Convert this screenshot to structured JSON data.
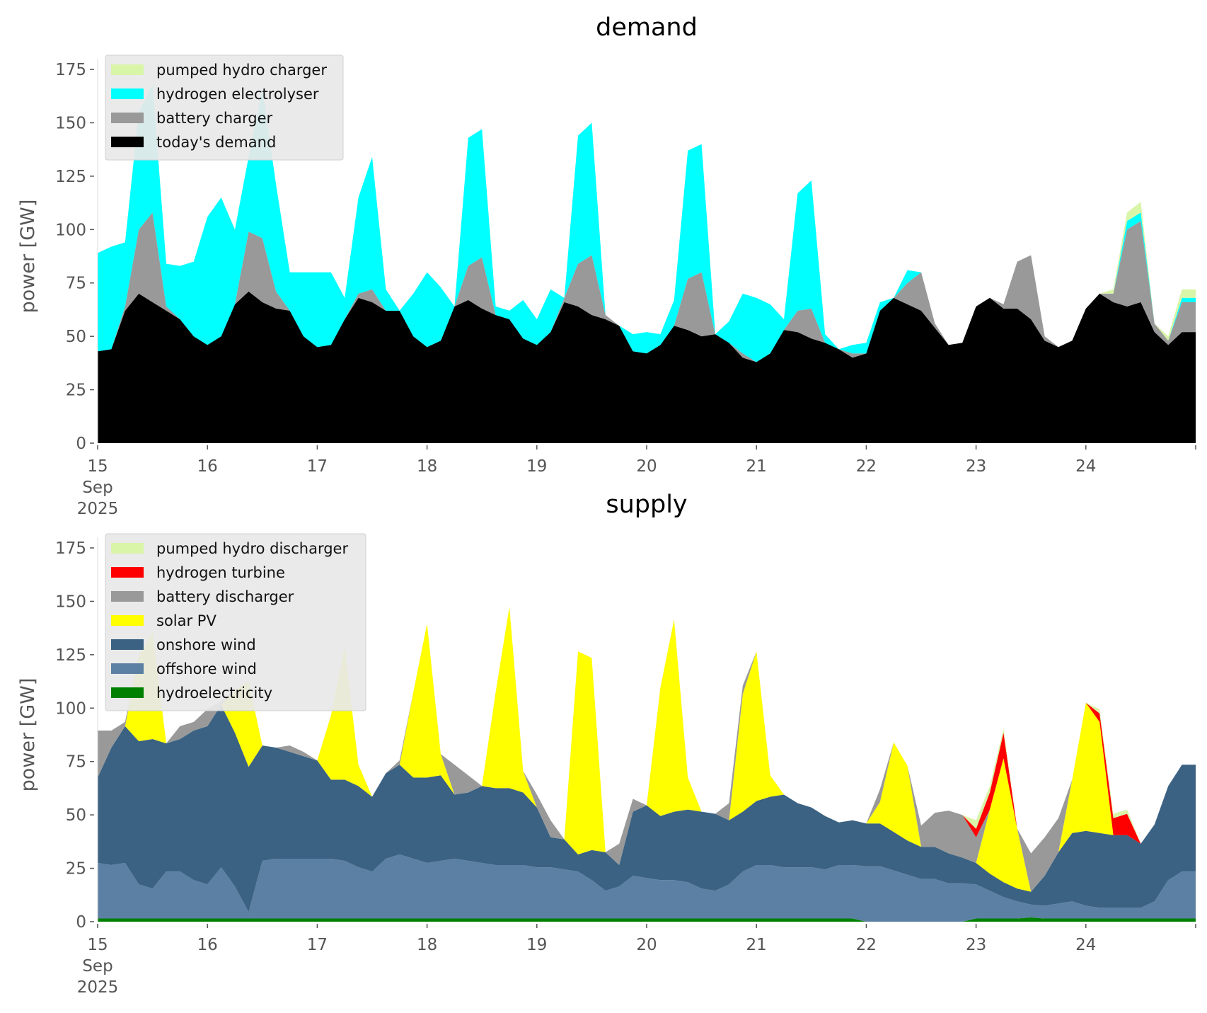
{
  "chart_data": [
    {
      "type": "area",
      "stacked": true,
      "title": "demand",
      "ylabel": "power [GW]",
      "xlabel": "",
      "ylim": [
        0,
        180
      ],
      "yticks": [
        0,
        25,
        50,
        75,
        100,
        125,
        150,
        175
      ],
      "xlim": [
        0,
        10
      ],
      "xticks": [
        0,
        1,
        2,
        3,
        4,
        5,
        6,
        7,
        8,
        9,
        10
      ],
      "xtick_labels": [
        "15\nSep\n2025",
        "16",
        "17",
        "18",
        "19",
        "20",
        "21",
        "22",
        "23",
        "24",
        ""
      ],
      "legend_position": "top-left",
      "x_unit": "days since 15 Sep 2025 (3-hourly samples)",
      "series": [
        {
          "name": "today's demand",
          "color": "#000000",
          "values": [
            43,
            44,
            62,
            70,
            66,
            62,
            58,
            50,
            46,
            50,
            65,
            71,
            66,
            63,
            62,
            50,
            45,
            46,
            58,
            68,
            66,
            62,
            62,
            50,
            45,
            48,
            64,
            67,
            63,
            60,
            58,
            49,
            46,
            52,
            66,
            64,
            60,
            58,
            55,
            43,
            42,
            46,
            55,
            53,
            50,
            51,
            47,
            40,
            38,
            42,
            53,
            52,
            49,
            47,
            44,
            40,
            42,
            62,
            68,
            65,
            62,
            54,
            46,
            47,
            64,
            68,
            63,
            63,
            58,
            48,
            45,
            48,
            63,
            70,
            66,
            64,
            66,
            52,
            46,
            52
          ]
        },
        {
          "name": "battery charger",
          "color": "#999999",
          "values": [
            0,
            0,
            2,
            30,
            42,
            2,
            0,
            0,
            0,
            0,
            0,
            28,
            30,
            8,
            0,
            0,
            0,
            0,
            0,
            2,
            6,
            0,
            0,
            0,
            0,
            0,
            0,
            16,
            24,
            0,
            0,
            0,
            0,
            0,
            2,
            20,
            28,
            2,
            0,
            0,
            0,
            0,
            0,
            24,
            30,
            0,
            0,
            2,
            0,
            0,
            0,
            10,
            14,
            0,
            0,
            2,
            0,
            0,
            0,
            10,
            18,
            2,
            0,
            0,
            0,
            0,
            2,
            22,
            30,
            2,
            0,
            0,
            0,
            0,
            4,
            36,
            38,
            4,
            2,
            14
          ]
        },
        {
          "name": "hydrogen electrolyser",
          "color": "#00ffff",
          "values": [
            46,
            48,
            30,
            55,
            60,
            20,
            25,
            35,
            60,
            65,
            35,
            35,
            70,
            50,
            18,
            30,
            35,
            34,
            10,
            45,
            62,
            10,
            0,
            20,
            35,
            25,
            0,
            60,
            60,
            4,
            4,
            18,
            12,
            20,
            0,
            60,
            62,
            0,
            0,
            8,
            10,
            5,
            12,
            60,
            60,
            0,
            10,
            28,
            30,
            23,
            5,
            55,
            60,
            4,
            0,
            4,
            5,
            4,
            0,
            6,
            0,
            0,
            0,
            0,
            0,
            0,
            0,
            0,
            0,
            0,
            0,
            0,
            0,
            0,
            0,
            4,
            4,
            0,
            0,
            2
          ]
        },
        {
          "name": "pumped hydro charger",
          "color": "#d9f5a8",
          "values": [
            0,
            0,
            0,
            0,
            0,
            0,
            0,
            0,
            0,
            0,
            0,
            0,
            0,
            0,
            0,
            0,
            0,
            0,
            0,
            0,
            0,
            0,
            0,
            0,
            0,
            0,
            0,
            0,
            0,
            0,
            0,
            0,
            0,
            0,
            0,
            0,
            0,
            0,
            0,
            0,
            0,
            0,
            0,
            0,
            0,
            0,
            0,
            0,
            0,
            0,
            0,
            0,
            0,
            0,
            0,
            0,
            0,
            0,
            0,
            0,
            0,
            0,
            0,
            0,
            0,
            0,
            0,
            0,
            0,
            0,
            0,
            0,
            0,
            0,
            2,
            4,
            5,
            0,
            2,
            4
          ]
        }
      ],
      "legend": [
        "pumped hydro charger",
        "hydrogen electrolyser",
        "battery charger",
        "today's demand"
      ]
    },
    {
      "type": "area",
      "stacked": true,
      "title": "supply",
      "ylabel": "power [GW]",
      "xlabel": "",
      "ylim": [
        0,
        180
      ],
      "yticks": [
        0,
        25,
        50,
        75,
        100,
        125,
        150,
        175
      ],
      "xlim": [
        0,
        10
      ],
      "xticks": [
        0,
        1,
        2,
        3,
        4,
        5,
        6,
        7,
        8,
        9,
        10
      ],
      "xtick_labels": [
        "15\nSep\n2025",
        "16",
        "17",
        "18",
        "19",
        "20",
        "21",
        "22",
        "23",
        "24",
        ""
      ],
      "legend_position": "top-left",
      "x_unit": "days since 15 Sep 2025 (3-hourly samples)",
      "series": [
        {
          "name": "hydroelectricity",
          "color": "#008000",
          "values": [
            1.5,
            1.5,
            1.5,
            1.5,
            1.5,
            1.5,
            1.5,
            1.5,
            1.5,
            1.5,
            1.5,
            1.5,
            1.5,
            1.5,
            1.5,
            1.5,
            1.5,
            1.5,
            1.5,
            1.5,
            1.5,
            1.5,
            1.5,
            1.5,
            1.5,
            1.5,
            1.5,
            1.5,
            1.5,
            1.5,
            1.5,
            1.5,
            1.5,
            1.5,
            1.5,
            1.5,
            1.5,
            1.5,
            1.5,
            1.5,
            1.5,
            1.5,
            1.5,
            1.5,
            1.5,
            1.5,
            1.5,
            1.5,
            1.5,
            1.5,
            1.5,
            1.5,
            1.5,
            1.5,
            1.5,
            1.5,
            0,
            0,
            0,
            0,
            0,
            0,
            0,
            0,
            1.5,
            1.5,
            1.5,
            1.5,
            2,
            1.5,
            1.5,
            1.5,
            1.5,
            1.5,
            1.5,
            1.5,
            1.5,
            1.5,
            1.5,
            1.5
          ]
        },
        {
          "name": "offshore wind",
          "color": "#5c80a3",
          "values": [
            26,
            25,
            26,
            16,
            14,
            22,
            22,
            18,
            16,
            24,
            15,
            3,
            27,
            28,
            28,
            28,
            28,
            28,
            27,
            24,
            22,
            28,
            30,
            28,
            26,
            27,
            28,
            27,
            26,
            25,
            25,
            25,
            24,
            24,
            23,
            22,
            18,
            13,
            15,
            20,
            19,
            18,
            18,
            17,
            14,
            13,
            16,
            22,
            25,
            25,
            24,
            24,
            24,
            23,
            25,
            25,
            26,
            26,
            24,
            22,
            20,
            20,
            18,
            18,
            16,
            13,
            10,
            8,
            6,
            6,
            7,
            8,
            6,
            5,
            5,
            5,
            5,
            8,
            18,
            22
          ]
        },
        {
          "name": "onshore wind",
          "color": "#3b6283",
          "values": [
            40,
            55,
            64,
            67,
            70,
            60,
            62,
            70,
            74,
            76,
            72,
            68,
            54,
            52,
            50,
            48,
            46,
            37,
            38,
            38,
            35,
            40,
            42,
            38,
            40,
            40,
            30,
            32,
            36,
            36,
            36,
            34,
            28,
            14,
            14,
            8,
            14,
            18,
            10,
            30,
            34,
            30,
            32,
            34,
            36,
            36,
            30,
            28,
            30,
            32,
            34,
            30,
            28,
            25,
            20,
            21,
            20,
            20,
            18,
            16,
            15,
            15,
            14,
            12,
            10,
            8,
            7,
            6,
            6,
            14,
            24,
            32,
            35,
            35,
            34,
            34,
            30,
            36,
            44,
            50
          ]
        },
        {
          "name": "solar PV",
          "color": "#ffff00",
          "values": [
            0,
            0,
            0,
            40,
            50,
            0,
            0,
            0,
            0,
            0,
            20,
            40,
            0,
            0,
            0,
            0,
            0,
            30,
            62,
            10,
            0,
            0,
            0,
            40,
            72,
            10,
            0,
            0,
            0,
            45,
            85,
            10,
            0,
            0,
            0,
            95,
            90,
            0,
            0,
            0,
            0,
            60,
            90,
            15,
            0,
            0,
            0,
            55,
            70,
            10,
            0,
            0,
            0,
            0,
            0,
            0,
            0,
            10,
            42,
            35,
            0,
            0,
            0,
            0,
            0,
            30,
            58,
            28,
            0,
            0,
            0,
            25,
            60,
            52,
            0,
            0,
            0,
            0,
            0,
            0
          ]
        },
        {
          "name": "battery discharger",
          "color": "#999999",
          "values": [
            22,
            8,
            2,
            0,
            0,
            0,
            6,
            4,
            8,
            2,
            0,
            0,
            0,
            0,
            3,
            2,
            0,
            0,
            0,
            0,
            0,
            0,
            2,
            0,
            0,
            0,
            14,
            8,
            0,
            0,
            0,
            0,
            6,
            8,
            0,
            0,
            0,
            0,
            10,
            6,
            0,
            0,
            0,
            0,
            0,
            0,
            8,
            4,
            0,
            0,
            0,
            0,
            0,
            0,
            0,
            0,
            0,
            6,
            0,
            0,
            10,
            16,
            20,
            20,
            12,
            0,
            0,
            0,
            18,
            18,
            16,
            0,
            0,
            0,
            0,
            0,
            0,
            0,
            0,
            0
          ]
        },
        {
          "name": "hydrogen turbine",
          "color": "#ff0000",
          "values": [
            0,
            0,
            0,
            0,
            0,
            0,
            0,
            0,
            0,
            0,
            0,
            0,
            0,
            0,
            0,
            0,
            0,
            0,
            0,
            0,
            0,
            0,
            0,
            0,
            0,
            0,
            0,
            0,
            0,
            0,
            0,
            0,
            0,
            0,
            0,
            0,
            0,
            0,
            0,
            0,
            0,
            0,
            0,
            0,
            0,
            0,
            0,
            0,
            0,
            0,
            0,
            0,
            0,
            0,
            0,
            0,
            0,
            0,
            0,
            0,
            0,
            0,
            0,
            0,
            4,
            8,
            12,
            0,
            0,
            0,
            0,
            0,
            0,
            4,
            8,
            10,
            0,
            0,
            0,
            0
          ]
        },
        {
          "name": "pumped hydro discharger",
          "color": "#d9f5a8",
          "values": [
            0,
            0,
            0,
            0,
            0,
            0,
            0,
            0,
            0,
            0,
            0,
            0,
            0,
            0,
            0,
            0,
            0,
            0,
            0,
            0,
            0,
            0,
            0,
            0,
            0,
            0,
            0,
            0,
            0,
            0,
            0,
            0,
            0,
            0,
            0,
            0,
            0,
            0,
            0,
            0,
            0,
            0,
            0,
            0,
            0,
            0,
            0,
            0,
            0,
            0,
            0,
            0,
            0,
            0,
            0,
            0,
            0,
            0,
            0,
            0,
            0,
            0,
            0,
            0,
            4,
            3,
            2,
            0,
            0,
            0,
            0,
            0,
            0,
            2,
            2,
            2,
            0,
            0,
            0,
            0
          ]
        }
      ],
      "legend": [
        "pumped hydro discharger",
        "hydrogen turbine",
        "battery discharger",
        "solar PV",
        "onshore wind",
        "offshore wind",
        "hydroelectricity"
      ]
    }
  ],
  "legend_colors": {
    "pumped hydro charger": "#d9f5a8",
    "hydrogen electrolyser": "#00ffff",
    "battery charger": "#999999",
    "today's demand": "#000000",
    "pumped hydro discharger": "#d9f5a8",
    "hydrogen turbine": "#ff0000",
    "battery discharger": "#999999",
    "solar PV": "#ffff00",
    "onshore wind": "#3b6283",
    "offshore wind": "#5c80a3",
    "hydroelectricity": "#008000"
  }
}
